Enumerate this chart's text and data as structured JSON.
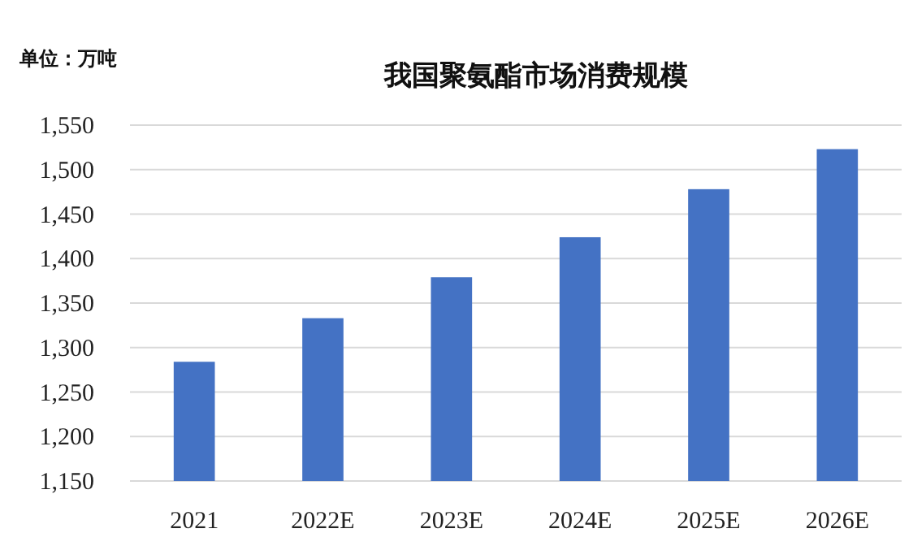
{
  "chart_data": {
    "type": "bar",
    "title": "我国聚氨酯市场消费规模",
    "annotations": [
      "单位：万吨"
    ],
    "categories": [
      "2021",
      "2022E",
      "2023E",
      "2024E",
      "2025E",
      "2026E"
    ],
    "values": [
      1284,
      1333,
      1379,
      1424,
      1478,
      1523
    ],
    "color": "#4472c4",
    "ylim": [
      1150,
      1550
    ],
    "yticks": [
      {
        "value": 1150,
        "label": "1,150"
      },
      {
        "value": 1200,
        "label": "1,200"
      },
      {
        "value": 1250,
        "label": "1,250"
      },
      {
        "value": 1300,
        "label": "1,300"
      },
      {
        "value": 1350,
        "label": "1,350"
      },
      {
        "value": 1400,
        "label": "1,400"
      },
      {
        "value": 1450,
        "label": "1,450"
      },
      {
        "value": 1500,
        "label": "1,500"
      },
      {
        "value": 1550,
        "label": "1,550"
      }
    ],
    "grid": "y"
  }
}
